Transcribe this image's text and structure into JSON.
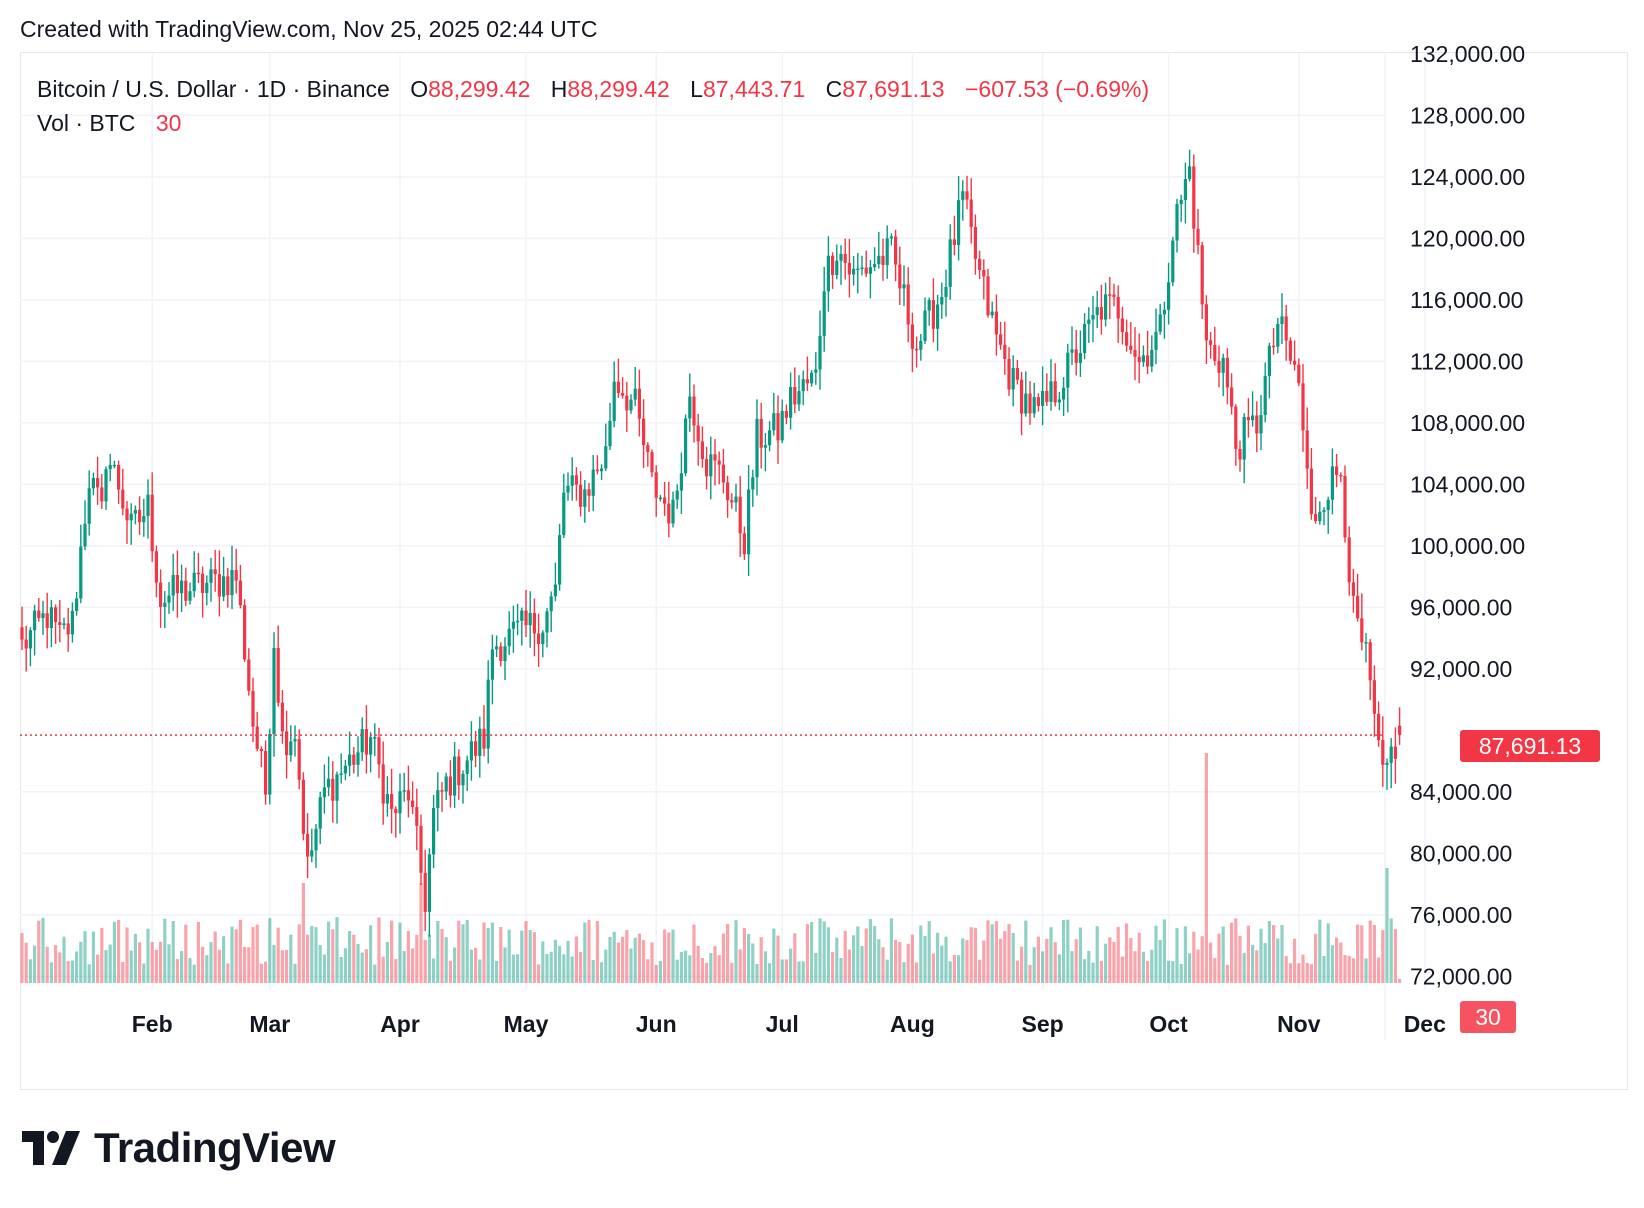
{
  "header": {
    "created_with": "Created with TradingView.com, Nov 25, 2025 02:44 UTC"
  },
  "legend": {
    "symbol": "Bitcoin / U.S. Dollar · 1D · Binance",
    "open_label": "O",
    "open": "88,299.42",
    "high_label": "H",
    "high": "88,299.42",
    "low_label": "L",
    "low": "87,443.71",
    "close_label": "C",
    "close": "87,691.13",
    "change": "−607.53 (−0.69%)",
    "vol_label": "Vol · BTC",
    "vol_value": "30"
  },
  "last_price_label": "87,691.13",
  "last_volume_label": "30",
  "brand": {
    "name": "TradingView"
  },
  "colors": {
    "up": "#089981",
    "down": "#f23645",
    "grid": "#f0f3fa",
    "axis_text": "#131722"
  },
  "chart_data": {
    "type": "candlestick",
    "title": "Bitcoin / U.S. Dollar · 1D · Binance",
    "x_tick_labels": [
      "Feb",
      "Mar",
      "Apr",
      "May",
      "Jun",
      "Jul",
      "Aug",
      "Sep",
      "Oct",
      "Nov",
      "Dec"
    ],
    "y_tick_labels": [
      "132,000.00",
      "128,000.00",
      "124,000.00",
      "120,000.00",
      "116,000.00",
      "112,000.00",
      "108,000.00",
      "104,000.00",
      "100,000.00",
      "96,000.00",
      "92,000.00",
      "84,000.00",
      "80,000.00",
      "76,000.00",
      "72,000.00"
    ],
    "ylim": [
      68900,
      132000
    ],
    "grid": true,
    "last_price": 87691.13,
    "series": [
      {
        "name": "Price",
        "points": [
          {
            "x": "Jan 1",
            "y": 93500
          },
          {
            "x": "Jan 7",
            "y": 95500
          },
          {
            "x": "Jan 10",
            "y": 94000
          },
          {
            "x": "Jan 13",
            "y": 95000
          },
          {
            "x": "Jan 17",
            "y": 104500
          },
          {
            "x": "Jan 20",
            "y": 102000
          },
          {
            "x": "Jan 21",
            "y": 106000
          },
          {
            "x": "Jan 24",
            "y": 104000
          },
          {
            "x": "Jan 27",
            "y": 101000
          },
          {
            "x": "Jan 31",
            "y": 102500
          },
          {
            "x": "Feb 3",
            "y": 96500
          },
          {
            "x": "Feb 7",
            "y": 97000
          },
          {
            "x": "Feb 14",
            "y": 97500
          },
          {
            "x": "Feb 21",
            "y": 98000
          },
          {
            "x": "Feb 25",
            "y": 88500
          },
          {
            "x": "Feb 28",
            "y": 84000
          },
          {
            "x": "Mar 2",
            "y": 94000
          },
          {
            "x": "Mar 4",
            "y": 87500
          },
          {
            "x": "Mar 7",
            "y": 88000
          },
          {
            "x": "Mar 10",
            "y": 79000
          },
          {
            "x": "Mar 14",
            "y": 84000
          },
          {
            "x": "Mar 20",
            "y": 86000
          },
          {
            "x": "Mar 25",
            "y": 87500
          },
          {
            "x": "Mar 30",
            "y": 82500
          },
          {
            "x": "Apr 3",
            "y": 84000
          },
          {
            "x": "Apr 7",
            "y": 77000
          },
          {
            "x": "Apr 9",
            "y": 82500
          },
          {
            "x": "Apr 12",
            "y": 84500
          },
          {
            "x": "Apr 21",
            "y": 87500
          },
          {
            "x": "Apr 23",
            "y": 93500
          },
          {
            "x": "Apr 30",
            "y": 94500
          },
          {
            "x": "May 5",
            "y": 95000
          },
          {
            "x": "May 8",
            "y": 97000
          },
          {
            "x": "May 10",
            "y": 103500
          },
          {
            "x": "May 15",
            "y": 103500
          },
          {
            "x": "May 20",
            "y": 106000
          },
          {
            "x": "May 22",
            "y": 111000
          },
          {
            "x": "May 27",
            "y": 109000
          },
          {
            "x": "May 31",
            "y": 104000
          },
          {
            "x": "Jun 5",
            "y": 102000
          },
          {
            "x": "Jun 9",
            "y": 110000
          },
          {
            "x": "Jun 13",
            "y": 105500
          },
          {
            "x": "Jun 17",
            "y": 104500
          },
          {
            "x": "Jun 22",
            "y": 100500
          },
          {
            "x": "Jun 25",
            "y": 107000
          },
          {
            "x": "Jun 30",
            "y": 107500
          },
          {
            "x": "Jul 3",
            "y": 109500
          },
          {
            "x": "Jul 9",
            "y": 111000
          },
          {
            "x": "Jul 11",
            "y": 117500
          },
          {
            "x": "Jul 14",
            "y": 119500
          },
          {
            "x": "Jul 18",
            "y": 117500
          },
          {
            "x": "Jul 23",
            "y": 118500
          },
          {
            "x": "Jul 27",
            "y": 119000
          },
          {
            "x": "Aug 2",
            "y": 113000
          },
          {
            "x": "Aug 8",
            "y": 116500
          },
          {
            "x": "Aug 13",
            "y": 122500
          },
          {
            "x": "Aug 17",
            "y": 117500
          },
          {
            "x": "Aug 21",
            "y": 113500
          },
          {
            "x": "Aug 25",
            "y": 110500
          },
          {
            "x": "Aug 31",
            "y": 108500
          },
          {
            "x": "Sep 5",
            "y": 110500
          },
          {
            "x": "Sep 10",
            "y": 113000
          },
          {
            "x": "Sep 15",
            "y": 115500
          },
          {
            "x": "Sep 19",
            "y": 115500
          },
          {
            "x": "Sep 24",
            "y": 112000
          },
          {
            "x": "Sep 29",
            "y": 114000
          },
          {
            "x": "Oct 2",
            "y": 120500
          },
          {
            "x": "Oct 6",
            "y": 124500
          },
          {
            "x": "Oct 10",
            "y": 113000
          },
          {
            "x": "Oct 14",
            "y": 112000
          },
          {
            "x": "Oct 17",
            "y": 106500
          },
          {
            "x": "Oct 22",
            "y": 108000
          },
          {
            "x": "Oct 27",
            "y": 114500
          },
          {
            "x": "Nov 1",
            "y": 110500
          },
          {
            "x": "Nov 4",
            "y": 101500
          },
          {
            "x": "Nov 7",
            "y": 103500
          },
          {
            "x": "Nov 11",
            "y": 105000
          },
          {
            "x": "Nov 14",
            "y": 95500
          },
          {
            "x": "Nov 17",
            "y": 92500
          },
          {
            "x": "Nov 21",
            "y": 84500
          },
          {
            "x": "Nov 23",
            "y": 86500
          },
          {
            "x": "Nov 25",
            "y": 87691
          }
        ]
      }
    ]
  }
}
